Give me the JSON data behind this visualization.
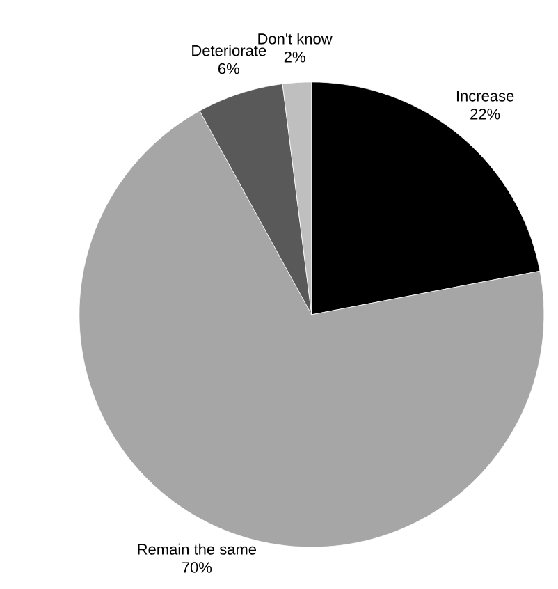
{
  "chart_data": {
    "type": "pie",
    "categories": [
      "Increase",
      "Remain the same",
      "Deteriorate",
      "Don't know"
    ],
    "values": [
      22,
      70,
      6,
      2
    ],
    "value_labels": [
      "22%",
      "70%",
      "6%",
      "2%"
    ],
    "colors": [
      "#000000",
      "#a6a6a6",
      "#595959",
      "#bfbfbf"
    ]
  }
}
